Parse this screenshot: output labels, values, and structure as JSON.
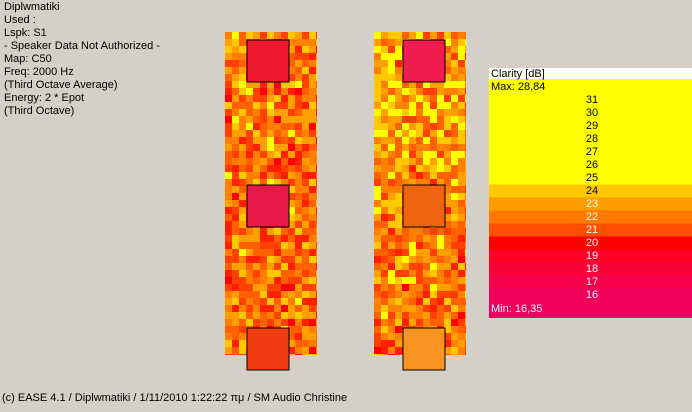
{
  "info": {
    "lines": [
      "Diplwmatiki",
      "Used :",
      "Lspk: S1",
      "- Speaker Data Not Authorized -",
      "Map: C50",
      "Freq: 2000 Hz",
      "(Third Octave Average)",
      "Energy: 2 * Epot",
      "(Third Octave)"
    ]
  },
  "legend": {
    "title": "Clarity [dB]",
    "max": "Max:  28,84",
    "ticks": [
      31,
      30,
      29,
      28,
      27,
      26,
      25,
      24,
      23,
      22,
      21,
      20,
      19,
      18,
      17,
      16
    ],
    "min": "Min:  16,35"
  },
  "footer": "(c) EASE 4.1  / Diplwmatiki  / 1/11/2010 1:22:22 πμ / SM Audio Christine"
}
